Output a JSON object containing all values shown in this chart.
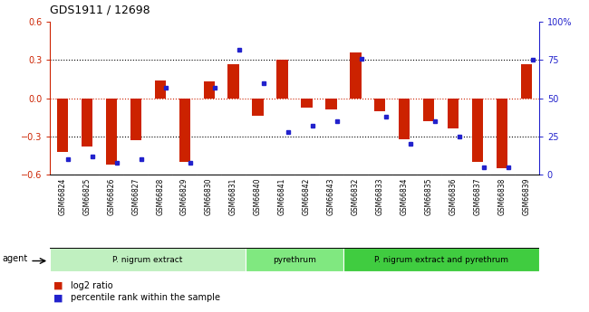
{
  "title": "GDS1911 / 12698",
  "samples": [
    "GSM66824",
    "GSM66825",
    "GSM66826",
    "GSM66827",
    "GSM66828",
    "GSM66829",
    "GSM66830",
    "GSM66831",
    "GSM66840",
    "GSM66841",
    "GSM66842",
    "GSM66843",
    "GSM66832",
    "GSM66833",
    "GSM66834",
    "GSM66835",
    "GSM66836",
    "GSM66837",
    "GSM66838",
    "GSM66839"
  ],
  "log2_ratio": [
    -0.42,
    -0.38,
    -0.52,
    -0.33,
    0.14,
    -0.5,
    0.13,
    0.27,
    -0.14,
    0.3,
    -0.07,
    -0.09,
    0.36,
    -0.1,
    -0.32,
    -0.18,
    -0.24,
    -0.5,
    -0.55,
    0.27
  ],
  "percentile": [
    10,
    12,
    8,
    10,
    57,
    8,
    57,
    82,
    60,
    28,
    32,
    35,
    76,
    38,
    20,
    35,
    25,
    5,
    5,
    75
  ],
  "groups": [
    {
      "label": "P. nigrum extract",
      "start": 0,
      "end": 8,
      "color": "#c0f0c0"
    },
    {
      "label": "pyrethrum",
      "start": 8,
      "end": 12,
      "color": "#80e880"
    },
    {
      "label": "P. nigrum extract and pyrethrum",
      "start": 12,
      "end": 20,
      "color": "#40cc40"
    }
  ],
  "ylim_left": [
    -0.6,
    0.6
  ],
  "ylim_right": [
    0,
    100
  ],
  "bar_color_red": "#cc2200",
  "bar_color_blue": "#2222cc",
  "agent_label": "agent",
  "legend_red": "log2 ratio",
  "legend_blue": "percentile rank within the sample",
  "yticks_left": [
    -0.6,
    -0.3,
    0.0,
    0.3,
    0.6
  ],
  "yticks_right": [
    0,
    25,
    50,
    75,
    100
  ],
  "xtick_bg": "#c8c8c8",
  "group_bg": "#d0d0d0"
}
